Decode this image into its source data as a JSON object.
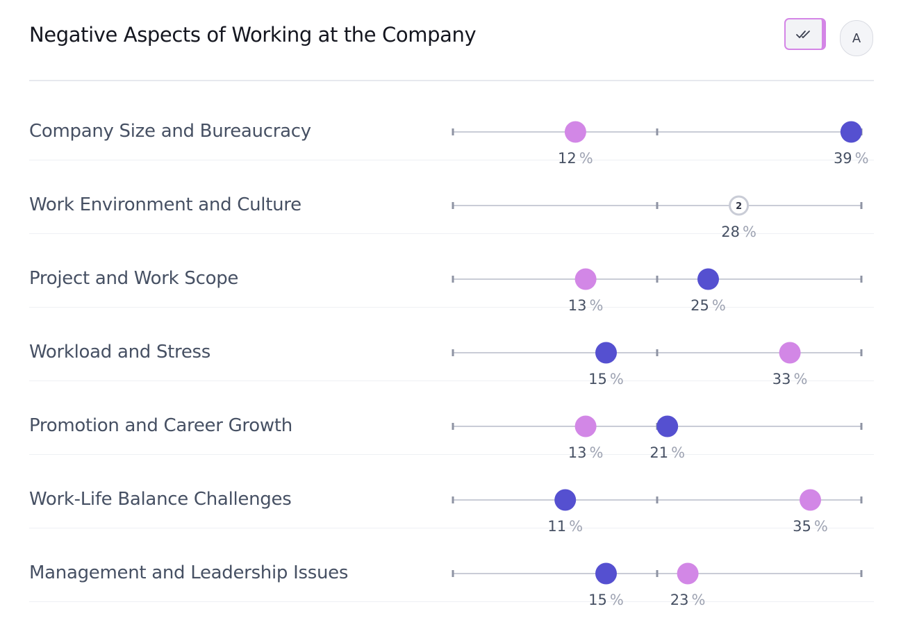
{
  "title": "Negative Aspects of Working at the Company",
  "controls": {
    "check_icon": "double-check-icon",
    "avatar_label": "A"
  },
  "colors": {
    "series_a": "#5550d0",
    "series_b": "#d287e6",
    "axis": "#c9ccd6",
    "tick": "#8e93a3"
  },
  "chart_data": {
    "type": "scatter",
    "x_range": [
      0,
      40
    ],
    "unit": "%",
    "categories": [
      "Company Size and Bureaucracy",
      "Work Environment and Culture",
      "Project and Work Scope",
      "Workload and Stress",
      "Promotion and Career Growth",
      "Work-Life Balance Challenges",
      "Management and Leadership Issues"
    ],
    "series": [
      {
        "color": "#5550d0",
        "values": [
          39,
          28,
          25,
          15,
          21,
          11,
          15
        ]
      },
      {
        "color": "#d287e6",
        "values": [
          12,
          28,
          13,
          33,
          13,
          35,
          23
        ]
      }
    ],
    "overlap_badges": [
      {
        "category_index": 1,
        "value": 28,
        "label": "2"
      }
    ]
  }
}
